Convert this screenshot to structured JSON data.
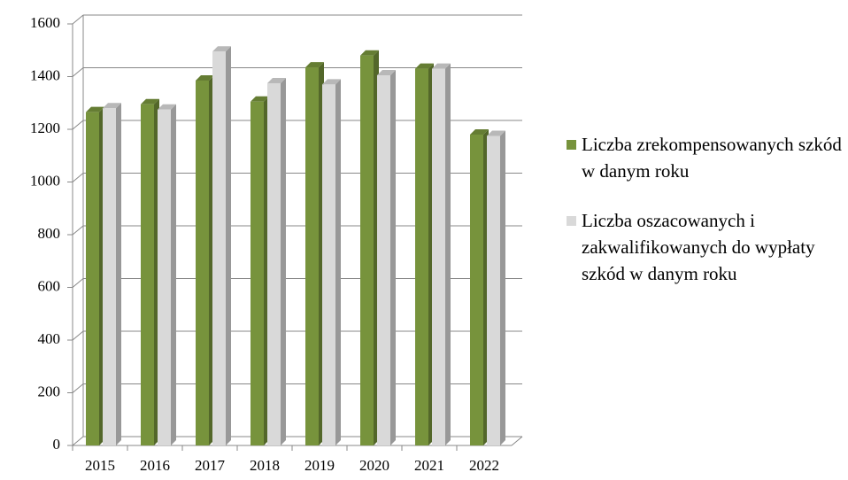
{
  "chart_data": {
    "type": "bar3d",
    "categories": [
      "2015",
      "2016",
      "2017",
      "2018",
      "2019",
      "2020",
      "2021",
      "2022"
    ],
    "series": [
      {
        "name": "Liczba zrekompensowanych szkód w danym roku",
        "color": "#77933c",
        "values": [
          1265,
          1295,
          1385,
          1305,
          1435,
          1480,
          1430,
          1180
        ]
      },
      {
        "name": "Liczba oszacowanych i zakwalifikowanych do wypłaty szkód w danym roku",
        "color": "#d9d9d9",
        "values": [
          1280,
          1275,
          1495,
          1375,
          1370,
          1405,
          1430,
          1175
        ]
      }
    ],
    "ylim": [
      0,
      1600
    ],
    "yticks": [
      0,
      200,
      400,
      600,
      800,
      1000,
      1200,
      1400,
      1600
    ],
    "grid": true,
    "legend": "right"
  }
}
